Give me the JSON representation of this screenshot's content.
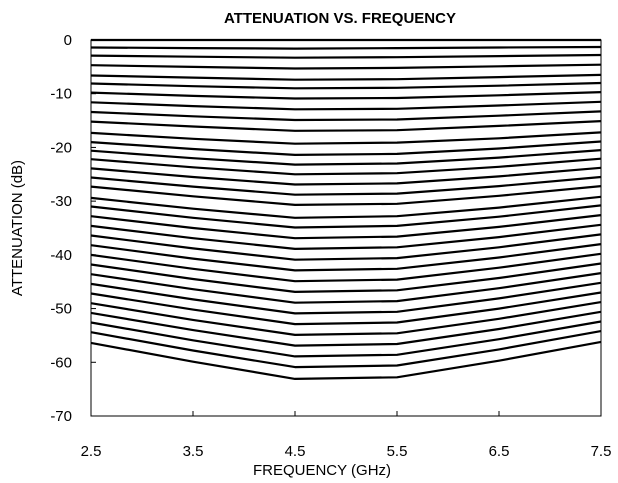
{
  "chart_data": {
    "type": "line",
    "title": "ATTENUATION VS. FREQUENCY",
    "xlabel": "FREQUENCY (GHz)",
    "ylabel": "ATTENUATION (dB)",
    "xlim": [
      2.5,
      7.5
    ],
    "ylim": [
      -70,
      0
    ],
    "x_ticks": [
      "2.5",
      "3.5",
      "4.5",
      "5.5",
      "6.5",
      "7.5"
    ],
    "y_ticks": [
      "0",
      "-10",
      "-20",
      "-30",
      "-40",
      "-50",
      "-60",
      "-70"
    ],
    "grid": false,
    "legend": "none",
    "line_color": "#000000",
    "x": [
      2.5,
      3.5,
      4.5,
      5.5,
      6.5,
      7.5
    ],
    "series": [
      {
        "values": [
          0.0,
          0.0,
          0.0,
          0.0,
          0.0,
          0.0
        ]
      },
      {
        "values": [
          -1.4,
          -1.5,
          -1.6,
          -1.5,
          -1.4,
          -1.3
        ]
      },
      {
        "values": [
          -2.9,
          -3.1,
          -3.3,
          -3.2,
          -3.0,
          -2.8
        ]
      },
      {
        "values": [
          -4.7,
          -5.0,
          -5.3,
          -5.2,
          -4.9,
          -4.6
        ]
      },
      {
        "values": [
          -6.6,
          -7.0,
          -7.4,
          -7.3,
          -6.9,
          -6.5
        ]
      },
      {
        "values": [
          -8.1,
          -8.6,
          -9.0,
          -8.9,
          -8.5,
          -8.0
        ]
      },
      {
        "values": [
          -9.8,
          -10.4,
          -10.9,
          -10.8,
          -10.3,
          -9.7
        ]
      },
      {
        "values": [
          -11.6,
          -12.3,
          -12.9,
          -12.8,
          -12.2,
          -11.5
        ]
      },
      {
        "values": [
          -13.4,
          -14.2,
          -14.9,
          -14.8,
          -14.1,
          -13.3
        ]
      },
      {
        "values": [
          -15.2,
          -16.1,
          -16.9,
          -16.8,
          -16.0,
          -15.1
        ]
      },
      {
        "values": [
          -17.3,
          -18.4,
          -19.3,
          -19.1,
          -18.3,
          -17.2
        ]
      },
      {
        "values": [
          -19.0,
          -20.3,
          -21.4,
          -21.2,
          -20.2,
          -18.9
        ]
      },
      {
        "values": [
          -20.6,
          -22.0,
          -23.2,
          -23.0,
          -21.9,
          -20.5
        ]
      },
      {
        "values": [
          -22.2,
          -23.7,
          -25.0,
          -24.8,
          -23.6,
          -22.1
        ]
      },
      {
        "values": [
          -23.9,
          -25.5,
          -26.9,
          -26.7,
          -25.4,
          -23.8
        ]
      },
      {
        "values": [
          -25.6,
          -27.3,
          -28.8,
          -28.6,
          -27.2,
          -25.5
        ]
      },
      {
        "values": [
          -27.3,
          -29.1,
          -30.7,
          -30.5,
          -29.0,
          -27.2
        ]
      },
      {
        "values": [
          -29.4,
          -31.4,
          -33.1,
          -32.8,
          -31.2,
          -29.2
        ]
      },
      {
        "values": [
          -31.0,
          -33.1,
          -34.9,
          -34.6,
          -32.9,
          -30.8
        ]
      },
      {
        "values": [
          -32.8,
          -35.0,
          -36.9,
          -36.6,
          -34.8,
          -32.6
        ]
      },
      {
        "values": [
          -34.6,
          -36.9,
          -38.9,
          -38.6,
          -36.7,
          -34.4
        ]
      },
      {
        "values": [
          -36.4,
          -38.8,
          -40.9,
          -40.6,
          -38.6,
          -36.2
        ]
      },
      {
        "values": [
          -38.2,
          -40.7,
          -42.9,
          -42.6,
          -40.5,
          -38.0
        ]
      },
      {
        "values": [
          -40.0,
          -42.6,
          -44.9,
          -44.6,
          -42.4,
          -39.8
        ]
      },
      {
        "values": [
          -41.8,
          -44.5,
          -46.9,
          -46.6,
          -44.3,
          -41.6
        ]
      },
      {
        "values": [
          -43.6,
          -46.4,
          -48.9,
          -48.6,
          -46.2,
          -43.4
        ]
      },
      {
        "values": [
          -45.4,
          -48.3,
          -50.9,
          -50.6,
          -48.1,
          -45.2
        ]
      },
      {
        "values": [
          -47.2,
          -50.2,
          -52.9,
          -52.6,
          -50.0,
          -47.0
        ]
      },
      {
        "values": [
          -49.0,
          -52.1,
          -54.9,
          -54.6,
          -51.9,
          -48.8
        ]
      },
      {
        "values": [
          -50.8,
          -54.0,
          -56.9,
          -56.6,
          -53.8,
          -50.6
        ]
      },
      {
        "values": [
          -52.6,
          -55.9,
          -58.9,
          -58.6,
          -55.7,
          -52.4
        ]
      },
      {
        "values": [
          -54.4,
          -57.8,
          -60.9,
          -60.6,
          -57.6,
          -54.2
        ]
      },
      {
        "values": [
          -56.4,
          -59.9,
          -63.1,
          -62.8,
          -59.7,
          -56.2
        ]
      }
    ]
  }
}
